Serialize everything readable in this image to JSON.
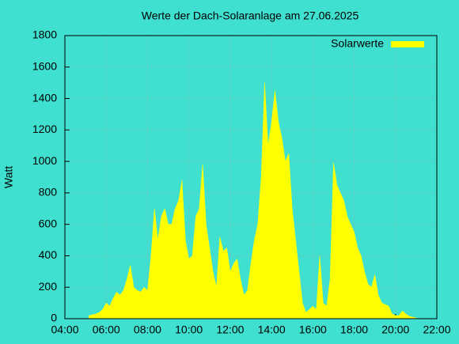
{
  "chart_data": {
    "type": "area",
    "title": "Werte der Dach-Solaranlage am 27.06.2025",
    "y_label": "Watt",
    "x": [
      "05:10",
      "05:20",
      "05:30",
      "05:40",
      "05:50",
      "06:00",
      "06:10",
      "06:20",
      "06:30",
      "06:40",
      "06:50",
      "07:00",
      "07:10",
      "07:20",
      "07:30",
      "07:40",
      "07:50",
      "08:00",
      "08:10",
      "08:20",
      "08:30",
      "08:40",
      "08:50",
      "09:00",
      "09:10",
      "09:20",
      "09:30",
      "09:40",
      "09:50",
      "10:00",
      "10:10",
      "10:20",
      "10:30",
      "10:40",
      "10:50",
      "11:00",
      "11:10",
      "11:20",
      "11:30",
      "11:40",
      "11:50",
      "12:00",
      "12:10",
      "12:20",
      "12:30",
      "12:40",
      "12:50",
      "13:00",
      "13:10",
      "13:20",
      "13:30",
      "13:40",
      "13:50",
      "14:00",
      "14:10",
      "14:20",
      "14:30",
      "14:40",
      "14:50",
      "15:00",
      "15:10",
      "15:20",
      "15:30",
      "15:40",
      "15:50",
      "16:00",
      "16:10",
      "16:20",
      "16:30",
      "16:40",
      "16:50",
      "17:00",
      "17:10",
      "17:20",
      "17:30",
      "17:40",
      "17:50",
      "18:00",
      "18:10",
      "18:20",
      "18:30",
      "18:40",
      "18:50",
      "19:00",
      "19:10",
      "19:20",
      "19:30",
      "19:40",
      "19:50",
      "20:00",
      "20:10",
      "20:20",
      "20:30",
      "20:40",
      "20:50",
      "21:00"
    ],
    "series": [
      {
        "name": "Solarwerte",
        "color": "#ffff00",
        "values": [
          20,
          25,
          30,
          40,
          60,
          100,
          80,
          130,
          170,
          150,
          180,
          250,
          340,
          200,
          180,
          170,
          200,
          180,
          400,
          700,
          500,
          650,
          700,
          600,
          600,
          700,
          750,
          880,
          500,
          380,
          400,
          650,
          700,
          980,
          600,
          450,
          300,
          200,
          520,
          430,
          450,
          300,
          350,
          380,
          250,
          150,
          180,
          350,
          500,
          600,
          900,
          1500,
          1100,
          1250,
          1450,
          1250,
          1150,
          1000,
          1050,
          700,
          500,
          300,
          100,
          40,
          60,
          80,
          60,
          400,
          100,
          80,
          250,
          990,
          850,
          800,
          750,
          650,
          600,
          550,
          450,
          400,
          300,
          220,
          200,
          280,
          150,
          100,
          90,
          80,
          30,
          20,
          20,
          50,
          30,
          15,
          10,
          5
        ]
      }
    ],
    "xlim": [
      "04:00",
      "22:00"
    ],
    "xticks": [
      "04:00",
      "06:00",
      "08:00",
      "10:00",
      "12:00",
      "14:00",
      "16:00",
      "18:00",
      "20:00",
      "22:00"
    ],
    "ylim": [
      0,
      1800
    ],
    "yticks": [
      0,
      200,
      400,
      600,
      800,
      1000,
      1200,
      1400,
      1600,
      1800
    ],
    "grid": true,
    "legend": "top-right"
  }
}
